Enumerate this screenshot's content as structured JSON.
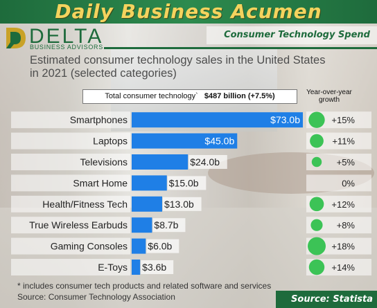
{
  "header": {
    "site_title": "Daily Business Acumen",
    "section_title": "Consumer Technology Spend"
  },
  "logo": {
    "name": "DELTA",
    "tagline": "BUSINESS ADVISORS"
  },
  "colors": {
    "header_green": "#1e6b3c",
    "title_yellow": "#f4d35e",
    "bar_blue": "#1f7fe6",
    "growth_circle": "#3cc356"
  },
  "chart_data": {
    "type": "bar",
    "orientation": "horizontal",
    "title": "Estimated consumer technology sales in the United States in 2021 (selected categories)",
    "total": {
      "label": "Total consumer technology`",
      "value": "$487 billion (+7.5%)"
    },
    "growth_header": "Year-over-year growth",
    "unit": "billion USD",
    "categories": [
      "Smartphones",
      "Laptops",
      "Televisions",
      "Smart Home",
      "Health/Fitness Tech",
      "True Wireless Earbuds",
      "Gaming Consoles",
      "E-Toys"
    ],
    "values": [
      73.0,
      45.0,
      24.0,
      15.0,
      13.0,
      8.7,
      6.0,
      3.6
    ],
    "value_labels": [
      "$73.0b",
      "$45.0b",
      "$24.0b",
      "$15.0b",
      "$13.0b",
      "$8.7b",
      "$6.0b",
      "$3.6b"
    ],
    "growth_values": [
      15,
      11,
      5,
      0,
      12,
      8,
      18,
      14
    ],
    "growth_labels": [
      "+15%",
      "+11%",
      "+5%",
      "0%",
      "+12%",
      "+8%",
      "+18%",
      "+14%"
    ],
    "xlim": [
      0,
      73.0
    ],
    "grid": false,
    "legend": "none"
  },
  "footer": {
    "footnote": "* includes consumer tech products and related software and services",
    "source_line": "Source: Consumer Technology Association",
    "source_badge": "Source: Statista"
  }
}
